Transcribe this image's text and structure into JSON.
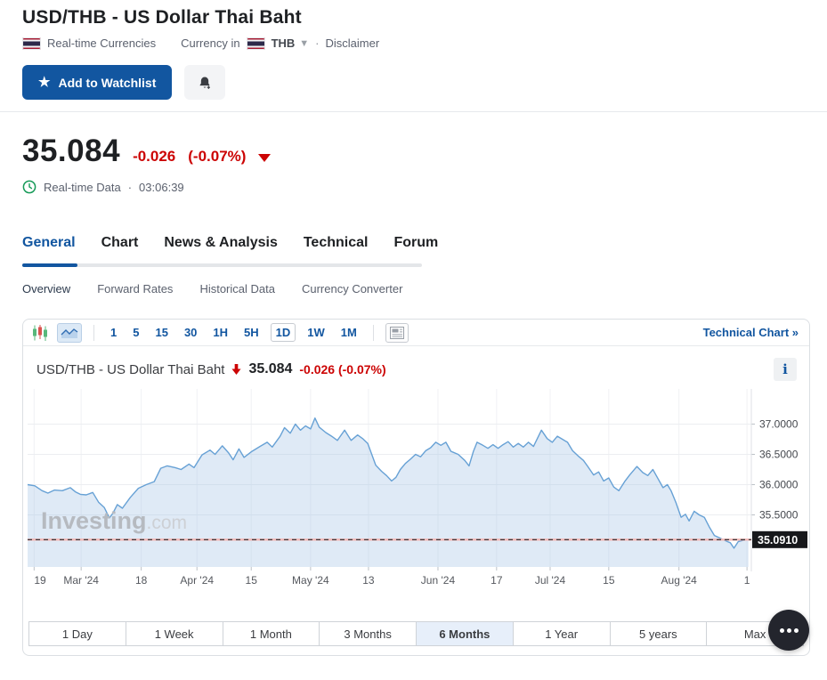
{
  "header": {
    "title": "USD/THB - US Dollar Thai Baht",
    "category": "Real-time Currencies",
    "currency_in_label": "Currency in",
    "currency_code": "THB",
    "separator": "·",
    "disclaimer": "Disclaimer",
    "watchlist_button": "Add to Watchlist"
  },
  "quote": {
    "price": "35.084",
    "change": "-0.026",
    "change_pct": "(-0.07%)",
    "data_note": "Real-time Data",
    "time_separator": "·",
    "time": "03:06:39"
  },
  "tabs": {
    "items": [
      "General",
      "Chart",
      "News & Analysis",
      "Technical",
      "Forum"
    ],
    "active": "General"
  },
  "subnav": {
    "items": [
      "Overview",
      "Forward Rates",
      "Historical Data",
      "Currency Converter"
    ],
    "active": "Overview"
  },
  "toolbar": {
    "timeframes": [
      "1",
      "5",
      "15",
      "30",
      "1H",
      "5H",
      "1D",
      "1W",
      "1M"
    ],
    "active_timeframe": "1D",
    "technical_chart_label": "Technical Chart »"
  },
  "chart_header": {
    "title": "USD/THB - US Dollar Thai Baht",
    "price": "35.084",
    "change": "-0.026 (-0.07%)",
    "info_icon": "i"
  },
  "colors": {
    "accent_blue": "#1256a0",
    "negative_red": "#cc0404",
    "price_tag_bg": "#17181b",
    "line_color": "#67a1d5",
    "fill_color": "rgba(163,196,229,0.35)",
    "dashed_base": "#f3b8b6",
    "dashed_dark": "#26282c"
  },
  "chart_data": {
    "type": "area",
    "title": "USD/THB - US Dollar Thai Baht",
    "ylim": [
      34.64,
      37.58
    ],
    "y_ticks": [
      37.0,
      36.5,
      36.0,
      35.5
    ],
    "y_tick_labels": [
      "37.0000",
      "36.5000",
      "36.0000",
      "35.5000"
    ],
    "current_price": 35.091,
    "current_price_label": "35.0910",
    "grid": true,
    "legend": "none",
    "x_ticks": [
      {
        "f": 0.009,
        "label": "19"
      },
      {
        "f": 0.074,
        "label": "Mar '24"
      },
      {
        "f": 0.157,
        "label": "18"
      },
      {
        "f": 0.234,
        "label": "Apr '24"
      },
      {
        "f": 0.309,
        "label": "15"
      },
      {
        "f": 0.391,
        "label": "May '24"
      },
      {
        "f": 0.471,
        "label": "13"
      },
      {
        "f": 0.567,
        "label": "Jun '24"
      },
      {
        "f": 0.648,
        "label": "17"
      },
      {
        "f": 0.722,
        "label": "Jul '24"
      },
      {
        "f": 0.803,
        "label": "15"
      },
      {
        "f": 0.9,
        "label": "Aug '24"
      },
      {
        "f": 0.994,
        "label": "1"
      }
    ],
    "points": [
      [
        0.0,
        36.0
      ],
      [
        0.01,
        35.98
      ],
      [
        0.02,
        35.9
      ],
      [
        0.028,
        35.86
      ],
      [
        0.037,
        35.91
      ],
      [
        0.048,
        35.9
      ],
      [
        0.059,
        35.95
      ],
      [
        0.066,
        35.88
      ],
      [
        0.073,
        35.84
      ],
      [
        0.081,
        35.83
      ],
      [
        0.09,
        35.87
      ],
      [
        0.098,
        35.71
      ],
      [
        0.106,
        35.62
      ],
      [
        0.113,
        35.45
      ],
      [
        0.118,
        35.53
      ],
      [
        0.124,
        35.67
      ],
      [
        0.131,
        35.61
      ],
      [
        0.142,
        35.79
      ],
      [
        0.153,
        35.94
      ],
      [
        0.164,
        36.0
      ],
      [
        0.175,
        36.05
      ],
      [
        0.184,
        36.27
      ],
      [
        0.193,
        36.31
      ],
      [
        0.204,
        36.28
      ],
      [
        0.212,
        36.25
      ],
      [
        0.223,
        36.34
      ],
      [
        0.23,
        36.28
      ],
      [
        0.241,
        36.49
      ],
      [
        0.252,
        36.57
      ],
      [
        0.259,
        36.5
      ],
      [
        0.269,
        36.64
      ],
      [
        0.278,
        36.52
      ],
      [
        0.284,
        36.41
      ],
      [
        0.292,
        36.59
      ],
      [
        0.299,
        36.45
      ],
      [
        0.31,
        36.55
      ],
      [
        0.321,
        36.63
      ],
      [
        0.331,
        36.7
      ],
      [
        0.338,
        36.62
      ],
      [
        0.349,
        36.8
      ],
      [
        0.355,
        36.94
      ],
      [
        0.363,
        36.85
      ],
      [
        0.37,
        37.0
      ],
      [
        0.377,
        36.9
      ],
      [
        0.384,
        36.97
      ],
      [
        0.391,
        36.92
      ],
      [
        0.397,
        37.1
      ],
      [
        0.403,
        36.95
      ],
      [
        0.412,
        36.86
      ],
      [
        0.42,
        36.8
      ],
      [
        0.428,
        36.73
      ],
      [
        0.438,
        36.9
      ],
      [
        0.447,
        36.73
      ],
      [
        0.456,
        36.82
      ],
      [
        0.463,
        36.76
      ],
      [
        0.47,
        36.68
      ],
      [
        0.481,
        36.32
      ],
      [
        0.489,
        36.22
      ],
      [
        0.496,
        36.15
      ],
      [
        0.503,
        36.06
      ],
      [
        0.509,
        36.12
      ],
      [
        0.515,
        36.25
      ],
      [
        0.522,
        36.35
      ],
      [
        0.529,
        36.42
      ],
      [
        0.536,
        36.5
      ],
      [
        0.543,
        36.46
      ],
      [
        0.55,
        36.56
      ],
      [
        0.557,
        36.61
      ],
      [
        0.564,
        36.7
      ],
      [
        0.571,
        36.65
      ],
      [
        0.578,
        36.7
      ],
      [
        0.585,
        36.55
      ],
      [
        0.595,
        36.5
      ],
      [
        0.604,
        36.4
      ],
      [
        0.61,
        36.31
      ],
      [
        0.616,
        36.55
      ],
      [
        0.621,
        36.7
      ],
      [
        0.629,
        36.65
      ],
      [
        0.636,
        36.6
      ],
      [
        0.643,
        36.66
      ],
      [
        0.65,
        36.6
      ],
      [
        0.657,
        36.66
      ],
      [
        0.664,
        36.71
      ],
      [
        0.671,
        36.62
      ],
      [
        0.678,
        36.68
      ],
      [
        0.685,
        36.62
      ],
      [
        0.692,
        36.7
      ],
      [
        0.699,
        36.63
      ],
      [
        0.71,
        36.9
      ],
      [
        0.718,
        36.76
      ],
      [
        0.725,
        36.7
      ],
      [
        0.732,
        36.8
      ],
      [
        0.739,
        36.75
      ],
      [
        0.746,
        36.7
      ],
      [
        0.753,
        36.56
      ],
      [
        0.762,
        36.46
      ],
      [
        0.768,
        36.4
      ],
      [
        0.774,
        36.3
      ],
      [
        0.782,
        36.16
      ],
      [
        0.789,
        36.21
      ],
      [
        0.796,
        36.06
      ],
      [
        0.803,
        36.11
      ],
      [
        0.81,
        35.96
      ],
      [
        0.817,
        35.9
      ],
      [
        0.825,
        36.05
      ],
      [
        0.832,
        36.16
      ],
      [
        0.842,
        36.3
      ],
      [
        0.85,
        36.2
      ],
      [
        0.857,
        36.15
      ],
      [
        0.864,
        36.25
      ],
      [
        0.871,
        36.1
      ],
      [
        0.878,
        35.95
      ],
      [
        0.884,
        36.0
      ],
      [
        0.889,
        35.9
      ],
      [
        0.896,
        35.7
      ],
      [
        0.903,
        35.46
      ],
      [
        0.909,
        35.51
      ],
      [
        0.914,
        35.4
      ],
      [
        0.921,
        35.56
      ],
      [
        0.928,
        35.5
      ],
      [
        0.935,
        35.46
      ],
      [
        0.942,
        35.3
      ],
      [
        0.949,
        35.16
      ],
      [
        0.956,
        35.12
      ],
      [
        0.963,
        35.08
      ],
      [
        0.971,
        35.04
      ],
      [
        0.976,
        34.95
      ],
      [
        0.982,
        35.06
      ],
      [
        0.989,
        35.08
      ],
      [
        0.996,
        35.09
      ]
    ],
    "watermark": {
      "bold": "Investing",
      "light": ".com"
    }
  },
  "ranges": {
    "items": [
      "1 Day",
      "1 Week",
      "1 Month",
      "3 Months",
      "6 Months",
      "1 Year",
      "5 years",
      "Max"
    ],
    "active": "6 Months"
  }
}
